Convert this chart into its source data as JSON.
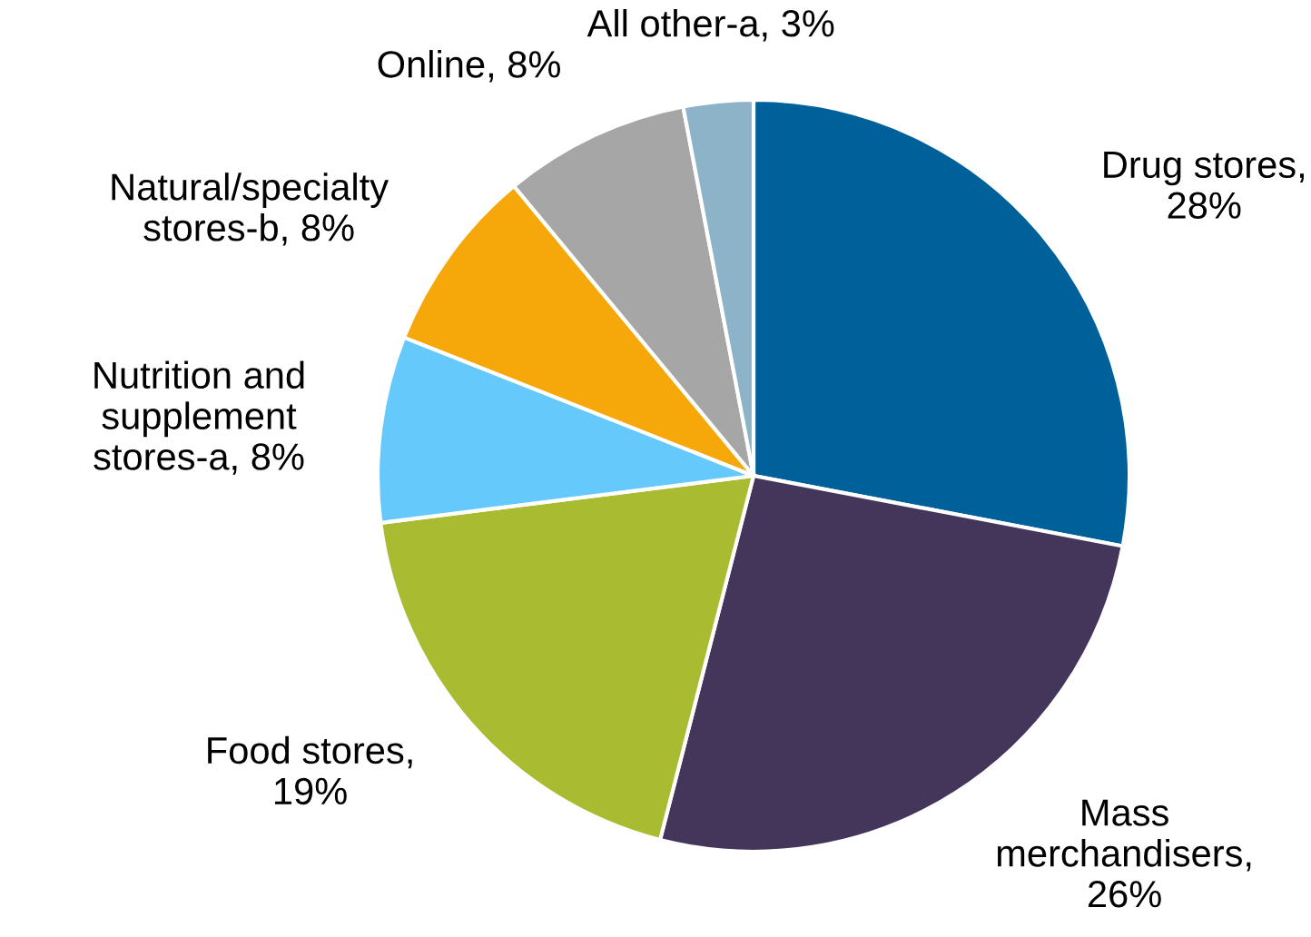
{
  "chart_data": {
    "type": "pie",
    "categories": [
      "Drug stores",
      "Mass\nmerchandisers",
      "Food stores",
      "Nutrition and\nsupplement\nstores-a",
      "Natural/specialty\nstores-b",
      "Online",
      "All other-a"
    ],
    "values": [
      28,
      26,
      19,
      8,
      8,
      8,
      3
    ],
    "colors": [
      "#00609a",
      "#44355b",
      "#a9bb30",
      "#66c9fb",
      "#f6a70a",
      "#a6a6a6",
      "#8cb3c7"
    ],
    "value_labels": [
      ",\n28%",
      ",\n26%",
      ",\n19%",
      ", 8%",
      ", 8%",
      ", 8%",
      ", 3%"
    ]
  }
}
